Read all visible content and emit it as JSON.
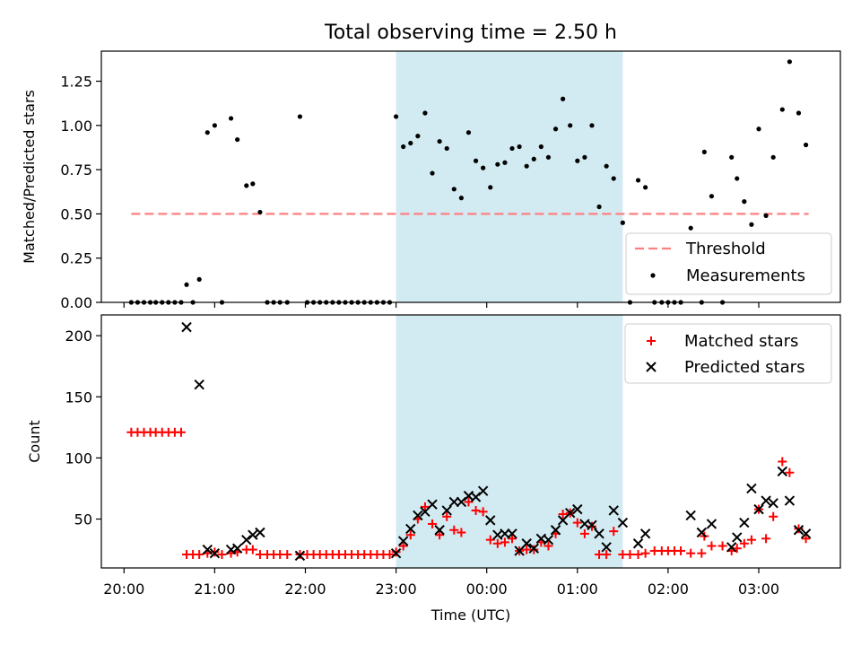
{
  "chart_data": [
    {
      "type": "scatter",
      "title": "Total observing time = 2.50 h",
      "xlabel": "",
      "ylabel": "Matched/Predicted stars",
      "x_unit": "hours since 20:00 UTC (visual estimate)",
      "xlim": [
        -0.25,
        7.9
      ],
      "ylim": [
        0,
        1.42
      ],
      "yticks": [
        "0.00",
        "0.25",
        "0.50",
        "0.75",
        "1.00",
        "1.25"
      ],
      "yticks_values": [
        0,
        0.25,
        0.5,
        0.75,
        1.0,
        1.25
      ],
      "grid": false,
      "shaded_region": {
        "x_start": 3.0,
        "x_end": 5.5,
        "color": "#add8e6"
      },
      "legend": {
        "placement": "lower-right",
        "entries": [
          "Threshold",
          "Measurements"
        ]
      },
      "series": [
        {
          "name": "Threshold",
          "style": "dashed-line",
          "color": "#ff7f7f",
          "x": [
            0.08,
            7.55
          ],
          "y": [
            0.5,
            0.5
          ]
        },
        {
          "name": "Measurements",
          "style": "dot",
          "color": "#000000",
          "points": [
            [
              0.08,
              0
            ],
            [
              0.15,
              0
            ],
            [
              0.22,
              0
            ],
            [
              0.29,
              0
            ],
            [
              0.35,
              0
            ],
            [
              0.42,
              0
            ],
            [
              0.49,
              0
            ],
            [
              0.56,
              0
            ],
            [
              0.63,
              0
            ],
            [
              0.69,
              0.1
            ],
            [
              0.76,
              0
            ],
            [
              0.83,
              0.13
            ],
            [
              0.92,
              0.96
            ],
            [
              1.0,
              1.0
            ],
            [
              1.08,
              0
            ],
            [
              1.18,
              1.04
            ],
            [
              1.25,
              0.92
            ],
            [
              1.35,
              0.66
            ],
            [
              1.42,
              0.67
            ],
            [
              1.5,
              0.51
            ],
            [
              1.58,
              0
            ],
            [
              1.65,
              0
            ],
            [
              1.72,
              0
            ],
            [
              1.8,
              0
            ],
            [
              1.94,
              1.05
            ],
            [
              2.02,
              0
            ],
            [
              2.09,
              0
            ],
            [
              2.16,
              0
            ],
            [
              2.23,
              0
            ],
            [
              2.3,
              0
            ],
            [
              2.37,
              0
            ],
            [
              2.44,
              0
            ],
            [
              2.51,
              0
            ],
            [
              2.58,
              0
            ],
            [
              2.65,
              0
            ],
            [
              2.72,
              0
            ],
            [
              2.79,
              0
            ],
            [
              2.86,
              0
            ],
            [
              2.93,
              0
            ],
            [
              3.0,
              1.05
            ],
            [
              3.08,
              0.88
            ],
            [
              3.16,
              0.9
            ],
            [
              3.24,
              0.94
            ],
            [
              3.32,
              1.07
            ],
            [
              3.4,
              0.73
            ],
            [
              3.48,
              0.91
            ],
            [
              3.56,
              0.87
            ],
            [
              3.64,
              0.64
            ],
            [
              3.72,
              0.59
            ],
            [
              3.8,
              0.96
            ],
            [
              3.88,
              0.8
            ],
            [
              3.96,
              0.76
            ],
            [
              4.04,
              0.65
            ],
            [
              4.12,
              0.78
            ],
            [
              4.2,
              0.79
            ],
            [
              4.28,
              0.87
            ],
            [
              4.36,
              0.88
            ],
            [
              4.44,
              0.77
            ],
            [
              4.52,
              0.81
            ],
            [
              4.6,
              0.88
            ],
            [
              4.68,
              0.82
            ],
            [
              4.76,
              0.98
            ],
            [
              4.84,
              1.15
            ],
            [
              4.92,
              1.0
            ],
            [
              5.0,
              0.8
            ],
            [
              5.08,
              0.82
            ],
            [
              5.16,
              1.0
            ],
            [
              5.24,
              0.54
            ],
            [
              5.32,
              0.77
            ],
            [
              5.4,
              0.7
            ],
            [
              5.5,
              0.45
            ],
            [
              5.58,
              0
            ],
            [
              5.67,
              0.69
            ],
            [
              5.75,
              0.65
            ],
            [
              5.85,
              0
            ],
            [
              5.93,
              0
            ],
            [
              6.0,
              0
            ],
            [
              6.07,
              0
            ],
            [
              6.14,
              0
            ],
            [
              6.25,
              0.42
            ],
            [
              6.37,
              0
            ],
            [
              6.4,
              0.85
            ],
            [
              6.48,
              0.6
            ],
            [
              6.6,
              0
            ],
            [
              6.7,
              0.82
            ],
            [
              6.76,
              0.7
            ],
            [
              6.84,
              0.57
            ],
            [
              6.92,
              0.44
            ],
            [
              7.0,
              0.98
            ],
            [
              7.08,
              0.49
            ],
            [
              7.16,
              0.82
            ],
            [
              7.26,
              1.09
            ],
            [
              7.34,
              1.36
            ],
            [
              7.44,
              1.07
            ],
            [
              7.52,
              0.89
            ]
          ]
        }
      ]
    },
    {
      "type": "scatter",
      "title": "",
      "xlabel": "Time (UTC)",
      "ylabel": "Count",
      "x_unit": "hours since 20:00 UTC (visual estimate)",
      "xlim": [
        -0.25,
        7.9
      ],
      "ylim": [
        10,
        217
      ],
      "yticks": [
        "50",
        "100",
        "150",
        "200"
      ],
      "yticks_values": [
        50,
        100,
        150,
        200
      ],
      "xticks": [
        "20:00",
        "21:00",
        "22:00",
        "23:00",
        "00:00",
        "01:00",
        "02:00",
        "03:00"
      ],
      "xticks_values": [
        0,
        1,
        2,
        3,
        4,
        5,
        6,
        7
      ],
      "grid": false,
      "shaded_region": {
        "x_start": 3.0,
        "x_end": 5.5,
        "color": "#add8e6"
      },
      "legend": {
        "placement": "upper-right",
        "entries": [
          "Matched stars",
          "Predicted stars"
        ]
      },
      "series": [
        {
          "name": "Matched stars",
          "marker": "plus",
          "color": "#ff0000",
          "points": [
            [
              0.08,
              121
            ],
            [
              0.15,
              121
            ],
            [
              0.22,
              121
            ],
            [
              0.29,
              121
            ],
            [
              0.35,
              121
            ],
            [
              0.42,
              121
            ],
            [
              0.49,
              121
            ],
            [
              0.56,
              121
            ],
            [
              0.63,
              121
            ],
            [
              0.69,
              21
            ],
            [
              0.76,
              21
            ],
            [
              0.83,
              21
            ],
            [
              0.92,
              22
            ],
            [
              1.0,
              23
            ],
            [
              1.08,
              21
            ],
            [
              1.18,
              22
            ],
            [
              1.25,
              23
            ],
            [
              1.35,
              25
            ],
            [
              1.42,
              25
            ],
            [
              1.5,
              21
            ],
            [
              1.58,
              21
            ],
            [
              1.65,
              21
            ],
            [
              1.72,
              21
            ],
            [
              1.8,
              21
            ],
            [
              1.94,
              21
            ],
            [
              2.02,
              21
            ],
            [
              2.09,
              21
            ],
            [
              2.16,
              21
            ],
            [
              2.23,
              21
            ],
            [
              2.3,
              21
            ],
            [
              2.37,
              21
            ],
            [
              2.44,
              21
            ],
            [
              2.51,
              21
            ],
            [
              2.58,
              21
            ],
            [
              2.65,
              21
            ],
            [
              2.72,
              21
            ],
            [
              2.79,
              21
            ],
            [
              2.86,
              21
            ],
            [
              2.93,
              21
            ],
            [
              3.0,
              23
            ],
            [
              3.08,
              28
            ],
            [
              3.16,
              37
            ],
            [
              3.24,
              50
            ],
            [
              3.32,
              60
            ],
            [
              3.4,
              46
            ],
            [
              3.48,
              37
            ],
            [
              3.56,
              52
            ],
            [
              3.64,
              41
            ],
            [
              3.72,
              39
            ],
            [
              3.8,
              64
            ],
            [
              3.88,
              57
            ],
            [
              3.96,
              56
            ],
            [
              4.04,
              33
            ],
            [
              4.12,
              30
            ],
            [
              4.2,
              31
            ],
            [
              4.28,
              34
            ],
            [
              4.36,
              24
            ],
            [
              4.44,
              25
            ],
            [
              4.52,
              25
            ],
            [
              4.6,
              31
            ],
            [
              4.68,
              28
            ],
            [
              4.76,
              38
            ],
            [
              4.84,
              54
            ],
            [
              4.92,
              55
            ],
            [
              5.0,
              47
            ],
            [
              5.08,
              38
            ],
            [
              5.16,
              44
            ],
            [
              5.24,
              21
            ],
            [
              5.32,
              21
            ],
            [
              5.4,
              40
            ],
            [
              5.5,
              21
            ],
            [
              5.58,
              21
            ],
            [
              5.67,
              21
            ],
            [
              5.75,
              22
            ],
            [
              5.85,
              24
            ],
            [
              5.93,
              24
            ],
            [
              6.0,
              24
            ],
            [
              6.07,
              24
            ],
            [
              6.14,
              24
            ],
            [
              6.25,
              22
            ],
            [
              6.37,
              22
            ],
            [
              6.4,
              36
            ],
            [
              6.48,
              28
            ],
            [
              6.6,
              28
            ],
            [
              6.7,
              24
            ],
            [
              6.76,
              26
            ],
            [
              6.84,
              30
            ],
            [
              6.92,
              33
            ],
            [
              7.0,
              58
            ],
            [
              7.08,
              34
            ],
            [
              7.16,
              52
            ],
            [
              7.26,
              97
            ],
            [
              7.34,
              88
            ],
            [
              7.44,
              42
            ],
            [
              7.52,
              34
            ]
          ]
        },
        {
          "name": "Predicted stars",
          "marker": "x",
          "color": "#000000",
          "points": [
            [
              0.69,
              207
            ],
            [
              0.83,
              160
            ],
            [
              0.92,
              25
            ],
            [
              1.0,
              22
            ],
            [
              1.18,
              25
            ],
            [
              1.25,
              26
            ],
            [
              1.35,
              33
            ],
            [
              1.42,
              37
            ],
            [
              1.5,
              39
            ],
            [
              1.94,
              20
            ],
            [
              3.0,
              22
            ],
            [
              3.08,
              32
            ],
            [
              3.16,
              42
            ],
            [
              3.24,
              53
            ],
            [
              3.32,
              56
            ],
            [
              3.4,
              62
            ],
            [
              3.48,
              41
            ],
            [
              3.56,
              57
            ],
            [
              3.64,
              64
            ],
            [
              3.72,
              64
            ],
            [
              3.8,
              69
            ],
            [
              3.88,
              68
            ],
            [
              3.96,
              73
            ],
            [
              4.04,
              49
            ],
            [
              4.12,
              37
            ],
            [
              4.2,
              38
            ],
            [
              4.28,
              38
            ],
            [
              4.36,
              24
            ],
            [
              4.44,
              30
            ],
            [
              4.52,
              26
            ],
            [
              4.6,
              34
            ],
            [
              4.68,
              33
            ],
            [
              4.76,
              41
            ],
            [
              4.84,
              49
            ],
            [
              4.92,
              55
            ],
            [
              5.0,
              58
            ],
            [
              5.08,
              46
            ],
            [
              5.16,
              45
            ],
            [
              5.24,
              38
            ],
            [
              5.32,
              27
            ],
            [
              5.4,
              57
            ],
            [
              5.5,
              47
            ],
            [
              5.67,
              30
            ],
            [
              5.75,
              38
            ],
            [
              6.25,
              53
            ],
            [
              6.37,
              39
            ],
            [
              6.48,
              46
            ],
            [
              6.7,
              27
            ],
            [
              6.76,
              35
            ],
            [
              6.84,
              47
            ],
            [
              6.92,
              75
            ],
            [
              7.0,
              58
            ],
            [
              7.08,
              65
            ],
            [
              7.16,
              63
            ],
            [
              7.26,
              89
            ],
            [
              7.34,
              65
            ],
            [
              7.44,
              41
            ],
            [
              7.52,
              38
            ]
          ]
        }
      ]
    }
  ]
}
